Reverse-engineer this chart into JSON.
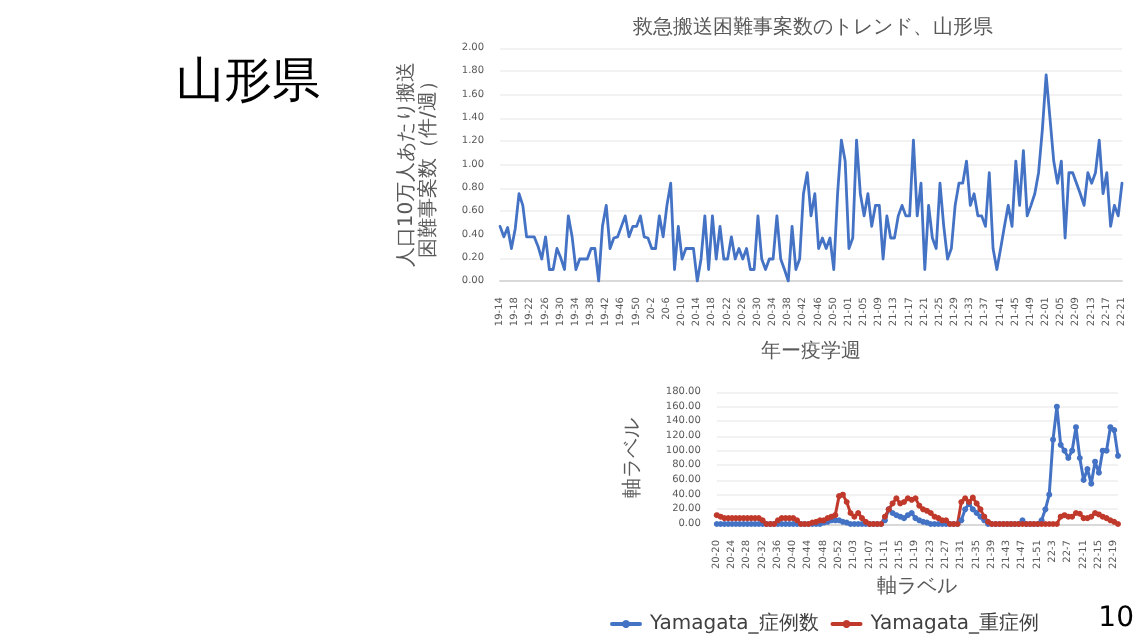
{
  "chart_data": [
    {
      "type": "line",
      "title": "救急搬送困難事案数のトレンド、山形県",
      "xlabel": "年ー疫学週",
      "ylabel": "人口10万人あたり搬送困難事案数（件/週）",
      "annotations": [
        "山形県"
      ],
      "grid": "y",
      "legend": false,
      "marker": "none",
      "line_style": "solid",
      "categories": [
        "19-14",
        null,
        null,
        null,
        "19-18",
        null,
        null,
        null,
        "19-22",
        null,
        null,
        null,
        "19-26",
        null,
        null,
        null,
        "19-30",
        null,
        null,
        null,
        "19-34",
        null,
        null,
        null,
        "19-38",
        null,
        null,
        null,
        "19-42",
        null,
        null,
        null,
        "19-46",
        null,
        null,
        null,
        "19-50",
        null,
        null,
        null,
        "20-2",
        null,
        null,
        null,
        "20-6",
        null,
        null,
        null,
        "20-10",
        null,
        null,
        null,
        "20-14",
        null,
        null,
        null,
        "20-18",
        null,
        null,
        null,
        "20-22",
        null,
        null,
        null,
        "20-26",
        null,
        null,
        null,
        "20-30",
        null,
        null,
        null,
        "20-34",
        null,
        null,
        null,
        "20-38",
        null,
        null,
        null,
        "20-42",
        null,
        null,
        null,
        "20-46",
        null,
        null,
        null,
        "20-50",
        null,
        null,
        null,
        "21-01",
        null,
        null,
        null,
        "21-05",
        null,
        null,
        null,
        "21-09",
        null,
        null,
        null,
        "21-13",
        null,
        null,
        null,
        "21-17",
        null,
        null,
        null,
        "21-21",
        null,
        null,
        null,
        "21-25",
        null,
        null,
        null,
        "21-29",
        null,
        null,
        null,
        "21-33",
        null,
        null,
        null,
        "21-37",
        null,
        null,
        null,
        "21-41",
        null,
        null,
        null,
        "21-45",
        null,
        null,
        null,
        "21-49",
        null,
        null,
        null,
        "22-01",
        null,
        null,
        null,
        "22-05",
        null,
        null,
        null,
        "22-09",
        null,
        null,
        null,
        "22-13",
        null,
        null,
        null,
        "22-17",
        null,
        null,
        null,
        "22-21"
      ],
      "ylim": [
        0,
        2
      ],
      "yticks": [
        {
          "value": 0,
          "label": "0.00"
        },
        {
          "value": 0.2,
          "label": "0.20"
        },
        {
          "value": 0.4,
          "label": "0.40"
        },
        {
          "value": 0.6,
          "label": "0.60"
        },
        {
          "value": 0.8,
          "label": "0.80"
        },
        {
          "value": 1,
          "label": "1.00"
        },
        {
          "value": 1.2,
          "label": "1.20"
        },
        {
          "value": 1.4,
          "label": "1.40"
        },
        {
          "value": 1.6,
          "label": "1.60"
        },
        {
          "value": 1.8,
          "label": "1.80"
        },
        {
          "value": 2,
          "label": "2.00"
        }
      ],
      "series": [
        {
          "color": "#4472c4",
          "values": [
            0.47,
            0.38,
            0.46,
            0.28,
            0.45,
            0.75,
            0.65,
            0.38,
            0.38,
            0.38,
            0.3,
            0.19,
            0.38,
            0.1,
            0.1,
            0.28,
            0.2,
            0.1,
            0.56,
            0.38,
            0.1,
            0.19,
            0.19,
            0.19,
            0.28,
            0.28,
            0,
            0.47,
            0.65,
            0.28,
            0.37,
            0.38,
            0.47,
            0.56,
            0.38,
            0.47,
            0.47,
            0.56,
            0.38,
            0.37,
            0.28,
            0.28,
            0.56,
            0.38,
            0.65,
            0.84,
            0.1,
            0.47,
            0.19,
            0.28,
            0.28,
            0.28,
            0,
            0.19,
            0.56,
            0.1,
            0.56,
            0.19,
            0.47,
            0.19,
            0.19,
            0.38,
            0.19,
            0.28,
            0.19,
            0.28,
            0.1,
            0.1,
            0.56,
            0.19,
            0.1,
            0.19,
            0.19,
            0.56,
            0.19,
            0.1,
            0,
            0.47,
            0.1,
            0.19,
            0.75,
            0.93,
            0.56,
            0.75,
            0.28,
            0.37,
            0.28,
            0.37,
            0.1,
            0.75,
            1.21,
            1.03,
            0.28,
            0.37,
            1.21,
            0.75,
            0.56,
            0.75,
            0.47,
            0.65,
            0.65,
            0.19,
            0.56,
            0.37,
            0.37,
            0.56,
            0.65,
            0.56,
            0.56,
            1.21,
            0.56,
            0.84,
            0.1,
            0.65,
            0.37,
            0.28,
            0.84,
            0.47,
            0.19,
            0.28,
            0.65,
            0.84,
            0.84,
            1.03,
            0.65,
            0.75,
            0.56,
            0.56,
            0.47,
            0.93,
            0.28,
            0.1,
            0.28,
            0.47,
            0.65,
            0.47,
            1.03,
            0.65,
            1.12,
            0.56,
            0.65,
            0.75,
            0.93,
            1.3,
            1.77,
            1.4,
            1.03,
            0.84,
            1.03,
            0.37,
            0.93,
            0.93,
            0.84,
            0.75,
            0.65,
            0.93,
            0.84,
            0.93,
            1.21,
            0.75,
            0.93,
            0.47,
            0.65,
            0.56,
            0.84
          ]
        }
      ]
    },
    {
      "type": "line",
      "xlabel": "軸ラベル",
      "ylabel": "軸ラベル",
      "annotations": [
        "10"
      ],
      "grid": "y",
      "legend": "bottom",
      "marker": "circle",
      "line_style": "solid",
      "categories": [
        "20-20",
        null,
        null,
        null,
        "20-24",
        null,
        null,
        null,
        "20-28",
        null,
        null,
        null,
        "20-32",
        null,
        null,
        null,
        "20-36",
        null,
        null,
        null,
        "20-40",
        null,
        null,
        null,
        "20-44",
        null,
        null,
        null,
        "20-48",
        null,
        null,
        null,
        "20-52",
        null,
        null,
        null,
        "21-03",
        null,
        null,
        null,
        "21-07",
        null,
        null,
        null,
        "21-11",
        null,
        null,
        null,
        "21-15",
        null,
        null,
        null,
        "21-19",
        null,
        null,
        null,
        "21-23",
        null,
        null,
        null,
        "21-27",
        null,
        null,
        null,
        "21-31",
        null,
        null,
        null,
        "21-35",
        null,
        null,
        null,
        "21-39",
        null,
        null,
        null,
        "21-43",
        null,
        null,
        null,
        "21-47",
        null,
        null,
        null,
        "21-51",
        null,
        null,
        null,
        "22-3",
        null,
        null,
        null,
        "22-7",
        null,
        null,
        null,
        "22-11",
        null,
        null,
        null,
        "22-15",
        null,
        null,
        null,
        "22-19",
        null
      ],
      "ylim": [
        0,
        180
      ],
      "yticks": [
        {
          "value": 0,
          "label": "0.00"
        },
        {
          "value": 20,
          "label": "20.00"
        },
        {
          "value": 40,
          "label": "40.00"
        },
        {
          "value": 60,
          "label": "60.00"
        },
        {
          "value": 80,
          "label": "80.00"
        },
        {
          "value": 100,
          "label": "100.00"
        },
        {
          "value": 120,
          "label": "120.00"
        },
        {
          "value": 140,
          "label": "140.00"
        },
        {
          "value": 160,
          "label": "160.00"
        },
        {
          "value": 180,
          "label": "180.00"
        }
      ],
      "series": [
        {
          "name": "Yamagata_症例数",
          "color": "#4472c4",
          "values": [
            0,
            0,
            0,
            0,
            0,
            0,
            0,
            0,
            0,
            0,
            0,
            0,
            0,
            0,
            0,
            0,
            0,
            0,
            0,
            0,
            0,
            0,
            0,
            0,
            0,
            0,
            0,
            0,
            2,
            3,
            5,
            5,
            5,
            3,
            2,
            0,
            0,
            0,
            0,
            0,
            0,
            0,
            0,
            0,
            5,
            20,
            15,
            12,
            10,
            8,
            12,
            15,
            8,
            5,
            3,
            2,
            0,
            0,
            0,
            0,
            0,
            0,
            0,
            0,
            5,
            20,
            28,
            20,
            15,
            10,
            5,
            0,
            0,
            0,
            0,
            0,
            0,
            0,
            0,
            0,
            5,
            0,
            0,
            0,
            0,
            5,
            20,
            40,
            115,
            160,
            108,
            100,
            90,
            100,
            132,
            90,
            60,
            75,
            55,
            85,
            70,
            100,
            100,
            132,
            128,
            93
          ]
        },
        {
          "name": "Yamagata_重症例",
          "color": "#c0392b",
          "values": [
            12,
            10,
            8,
            8,
            8,
            8,
            8,
            8,
            8,
            8,
            8,
            8,
            5,
            0,
            0,
            0,
            5,
            8,
            8,
            8,
            8,
            5,
            0,
            0,
            0,
            2,
            3,
            5,
            5,
            8,
            10,
            12,
            38,
            40,
            30,
            15,
            10,
            15,
            8,
            3,
            0,
            0,
            0,
            0,
            10,
            20,
            28,
            35,
            28,
            30,
            35,
            33,
            35,
            25,
            20,
            18,
            15,
            10,
            8,
            5,
            5,
            0,
            0,
            0,
            30,
            35,
            30,
            36,
            28,
            20,
            10,
            3,
            0,
            0,
            0,
            0,
            0,
            0,
            0,
            0,
            0,
            0,
            0,
            0,
            0,
            0,
            0,
            0,
            0,
            0,
            10,
            12,
            10,
            10,
            15,
            14,
            8,
            8,
            10,
            15,
            13,
            10,
            8,
            5,
            3,
            0
          ]
        }
      ]
    }
  ]
}
